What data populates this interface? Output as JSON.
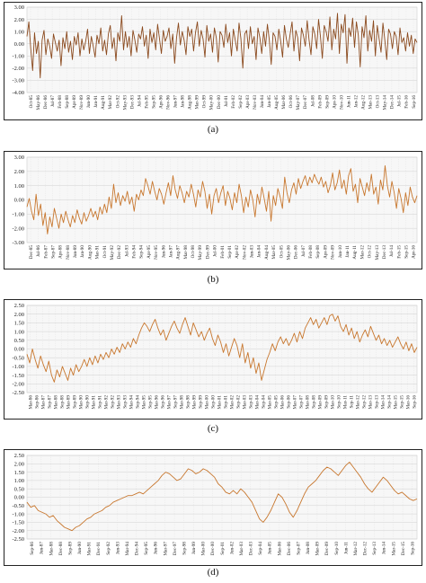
{
  "panels": [
    {
      "caption": "(a)",
      "ticks_y": [
        "-4.00",
        "-3.00",
        "-2.00",
        "-1.00",
        "0.00",
        "1.00",
        "2.00",
        "3.00"
      ],
      "ticks_x": [
        "Oct-85",
        "May-86",
        "Dec-86",
        "Jul-87",
        "Feb-88",
        "Sep-88",
        "Apr-89",
        "Nov-89",
        "Jun-90",
        "Jan-91",
        "Aug-91",
        "Mar-92",
        "Oct-92",
        "May-93",
        "Dec-93",
        "Jul-94",
        "Feb-95",
        "Sep-95",
        "Apr-96",
        "Nov-96",
        "Jun-97",
        "Jan-98",
        "Aug-98",
        "Mar-99",
        "Oct-99",
        "May-00",
        "Dec-00",
        "Jul-01",
        "Feb-02",
        "Sep-02",
        "Apr-03",
        "Nov-03",
        "Jun-04",
        "Jan-05",
        "Aug-05",
        "Mar-06",
        "Oct-06",
        "May-07",
        "Dec-07",
        "Jul-08",
        "Feb-09",
        "Sep-09",
        "Apr-10",
        "Nov-10",
        "Jun-11",
        "Jan-12",
        "Aug-12",
        "Mar-13",
        "Oct-13",
        "May-14",
        "Dec-14",
        "Jul-15",
        "Feb-16",
        "Sep-16"
      ]
    },
    {
      "caption": "(b)",
      "ticks_y": [
        "-3.00",
        "-2.00",
        "-1.00",
        "0.00",
        "1.00",
        "2.00",
        "3.00"
      ],
      "ticks_x": [
        "Dec-85",
        "Jul-86",
        "Feb-87",
        "Sep-87",
        "Apr-88",
        "Nov-88",
        "Jun-89",
        "Jan-90",
        "Aug-90",
        "Mar-91",
        "Oct-91",
        "May-92",
        "Dec-92",
        "Jul-93",
        "Feb-94",
        "Sep-94",
        "Apr-95",
        "Nov-95",
        "Jun-96",
        "Jan-97",
        "Aug-97",
        "Mar-98",
        "Oct-98",
        "May-99",
        "Dec-99",
        "Jul-00",
        "Feb-01",
        "Sep-01",
        "Apr-02",
        "Nov-02",
        "Jun-03",
        "Jan-04",
        "Aug-04",
        "Mar-05",
        "Oct-05",
        "May-06",
        "Dec-06",
        "Jul-07",
        "Feb-08",
        "Sep-08",
        "Apr-09",
        "Nov-09",
        "Jun-10",
        "Jan-11",
        "Aug-11",
        "Mar-12",
        "Oct-12",
        "May-13",
        "Dec-13",
        "Jul-14",
        "Feb-15",
        "Sep-15",
        "Apr-16"
      ]
    },
    {
      "caption": "(c)",
      "ticks_y": [
        "-2.50",
        "-2.00",
        "-1.50",
        "-1.00",
        "-0.50",
        "0.00",
        "0.50",
        "1.00",
        "1.50",
        "2.00",
        "2.50"
      ],
      "ticks_x": [
        "Mar-86",
        "Sep-86",
        "Mar-87",
        "Sep-87",
        "Mar-88",
        "Sep-88",
        "Mar-89",
        "Sep-89",
        "Mar-90",
        "Sep-90",
        "Mar-91",
        "Sep-91",
        "Mar-92",
        "Sep-92",
        "Mar-93",
        "Sep-93",
        "Mar-94",
        "Sep-94",
        "Mar-95",
        "Sep-95",
        "Mar-96",
        "Sep-96",
        "Mar-97",
        "Sep-97",
        "Mar-98",
        "Sep-98",
        "Mar-99",
        "Sep-99",
        "Mar-00",
        "Sep-00",
        "Mar-01",
        "Sep-01",
        "Mar-02",
        "Sep-02",
        "Mar-03",
        "Sep-03",
        "Mar-04",
        "Sep-04",
        "Mar-05",
        "Sep-05",
        "Mar-06",
        "Sep-06",
        "Mar-07",
        "Sep-07",
        "Mar-08",
        "Sep-08",
        "Mar-09",
        "Sep-09",
        "Mar-10",
        "Sep-10",
        "Mar-11",
        "Sep-11",
        "Mar-12",
        "Sep-12",
        "Mar-13",
        "Sep-13",
        "Mar-14",
        "Sep-14",
        "Mar-15",
        "Sep-15",
        "Mar-16",
        "Sep-16"
      ]
    },
    {
      "caption": "(d)",
      "ticks_y": [
        "-2.50",
        "-2.00",
        "-1.50",
        "-1.00",
        "-0.50",
        "0.00",
        "0.50",
        "1.00",
        "1.50",
        "2.00",
        "2.50"
      ],
      "ticks_x": [
        "Sep-86",
        "Jun-87",
        "Mar-88",
        "Dec-88",
        "Sep-89",
        "Jun-90",
        "Mar-91",
        "Dec-91",
        "Sep-92",
        "Jun-93",
        "Mar-94",
        "Dec-94",
        "Sep-95",
        "Jun-96",
        "Mar-97",
        "Dec-97",
        "Sep-98",
        "Jun-99",
        "Mar-00",
        "Dec-00",
        "Sep-01",
        "Jun-02",
        "Mar-03",
        "Dec-03",
        "Sep-04",
        "Jun-05",
        "Mar-06",
        "Dec-06",
        "Sep-07",
        "Jun-08",
        "Mar-09",
        "Dec-09",
        "Sep-10",
        "Jun-11",
        "Mar-12",
        "Dec-12",
        "Sep-13",
        "Jun-14",
        "Mar-15",
        "Dec-15",
        "Sep-16"
      ]
    }
  ],
  "chart_data": [
    {
      "type": "line",
      "title": "",
      "xlabel": "",
      "ylabel": "",
      "ylim": [
        -4,
        3
      ],
      "grid": true,
      "color": "#8B4A1E",
      "x_start": "Oct-85",
      "x_end": "Dec-16",
      "values": [
        0.6,
        1.8,
        -0.4,
        -2.2,
        0.9,
        -0.8,
        0.2,
        -2.8,
        0.3,
        1.1,
        -0.9,
        0.4,
        -0.2,
        -1.2,
        0.8,
        0.1,
        -0.6,
        0.3,
        -1.8,
        0.5,
        -0.4,
        1.0,
        -0.7,
        0.2,
        -1.3,
        0.6,
        -0.1,
        0.9,
        -1.0,
        0.4,
        -0.5,
        0.2,
        1.2,
        -0.8,
        0.6,
        -0.2,
        -1.1,
        0.7,
        0.0,
        1.3,
        -0.6,
        0.3,
        -0.9,
        0.8,
        1.5,
        -0.4,
        0.5,
        -1.4,
        0.9,
        0.2,
        2.3,
        -0.5,
        1.0,
        -0.3,
        0.6,
        -1.0,
        1.1,
        0.3,
        -0.7,
        0.8,
        0.4,
        1.4,
        -0.2,
        0.7,
        -1.2,
        1.2,
        0.1,
        0.9,
        -0.5,
        1.6,
        0.4,
        -0.8,
        1.1,
        0.2,
        0.6,
        1.3,
        -0.4,
        0.8,
        -1.6,
        0.5,
        1.7,
        -0.1,
        1.0,
        0.3,
        -0.9,
        1.4,
        0.6,
        1.2,
        -0.6,
        0.9,
        1.8,
        -0.2,
        1.1,
        0.4,
        -1.1,
        1.5,
        0.2,
        0.8,
        -0.7,
        1.3,
        0.5,
        -1.5,
        1.0,
        0.7,
        -0.3,
        1.6,
        0.1,
        0.9,
        -1.0,
        1.2,
        0.3,
        -0.6,
        1.7,
        0.4,
        -2.0,
        0.8,
        1.1,
        -0.4,
        1.4,
        0.0,
        0.6,
        -1.3,
        1.3,
        0.5,
        -0.8,
        1.0,
        -0.2,
        1.6,
        0.3,
        -1.7,
        0.9,
        0.6,
        -0.5,
        1.2,
        0.2,
        -1.1,
        1.5,
        0.4,
        -0.3,
        0.8,
        1.8,
        -0.6,
        1.1,
        0.5,
        -1.4,
        1.3,
        0.7,
        -0.2,
        1.9,
        0.3,
        -0.9,
        1.4,
        0.8,
        -0.4,
        2.0,
        0.6,
        -1.2,
        1.5,
        1.0,
        0.2,
        2.2,
        -0.5,
        1.2,
        0.4,
        2.5,
        -0.8,
        1.6,
        0.9,
        2.4,
        -1.6,
        1.3,
        0.6,
        2.1,
        -0.3,
        1.8,
        0.7,
        -1.9,
        1.4,
        0.5,
        2.3,
        -0.6,
        1.1,
        0.2,
        1.9,
        -1.0,
        1.5,
        0.4,
        -0.7,
        1.7,
        0.3,
        -1.3,
        1.2,
        0.8,
        -0.4,
        1.0,
        0.6,
        -0.9,
        1.3,
        0.1,
        0.5,
        -0.6,
        0.9,
        -0.2,
        0.7,
        -0.8,
        0.4,
        0.1
      ]
    },
    {
      "type": "line",
      "title": "",
      "xlabel": "",
      "ylabel": "",
      "ylim": [
        -3,
        3
      ],
      "grid": true,
      "color": "#C8772E",
      "x_start": "Dec-85",
      "x_end": "Dec-16",
      "values": [
        -0.5,
        0.1,
        -0.8,
        -1.4,
        0.4,
        -1.1,
        -0.3,
        -1.8,
        -0.9,
        -2.4,
        -1.2,
        -1.9,
        -0.6,
        -1.3,
        -2.0,
        -1.0,
        -1.6,
        -0.8,
        -1.4,
        -1.9,
        -1.1,
        -1.6,
        -0.7,
        -1.3,
        -1.7,
        -0.9,
        -1.5,
        -1.1,
        -0.6,
        -1.2,
        -0.8,
        -1.4,
        -0.5,
        -1.0,
        -0.3,
        -0.9,
        0.2,
        -0.6,
        1.1,
        -0.2,
        0.5,
        -0.4,
        0.3,
        -0.1,
        0.6,
        -0.3,
        0.2,
        -0.8,
        0.4,
        0.0,
        0.7,
        0.3,
        1.5,
        1.0,
        0.4,
        1.3,
        0.6,
        0.0,
        0.8,
        0.4,
        -0.3,
        0.5,
        1.2,
        0.3,
        1.7,
        0.7,
        0.1,
        1.0,
        0.5,
        -0.2,
        0.6,
        0.2,
        1.1,
        0.4,
        -0.5,
        0.7,
        0.2,
        1.3,
        0.6,
        -0.6,
        0.4,
        -1.0,
        0.3,
        0.8,
        -0.2,
        0.5,
        1.0,
        -0.4,
        0.6,
        0.1,
        -0.7,
        0.5,
        -0.2,
        1.1,
        0.3,
        -0.9,
        0.2,
        -0.5,
        0.7,
        0.0,
        -1.2,
        0.4,
        -0.3,
        0.9,
        0.1,
        -0.8,
        0.6,
        -1.5,
        0.3,
        -0.4,
        0.8,
        0.2,
        -0.6,
        1.6,
        0.5,
        -0.2,
        0.7,
        1.2,
        0.4,
        1.5,
        0.8,
        1.3,
        1.7,
        1.0,
        1.6,
        1.2,
        1.8,
        1.4,
        1.1,
        1.6,
        0.9,
        1.3,
        0.5,
        1.0,
        1.9,
        0.7,
        1.2,
        2.1,
        0.8,
        1.4,
        0.4,
        1.7,
        2.2,
        0.6,
        1.1,
        -0.2,
        1.5,
        0.9,
        0.3,
        1.2,
        0.6,
        1.8,
        0.4,
        0.9,
        -0.3,
        1.4,
        0.7,
        2.4,
        1.0,
        0.2,
        1.3,
        0.5,
        -0.6,
        0.8,
        0.1,
        -0.9,
        0.5,
        -0.4,
        0.9,
        0.2,
        -0.2,
        0.3
      ]
    },
    {
      "type": "line",
      "title": "",
      "xlabel": "",
      "ylabel": "",
      "ylim": [
        -2.5,
        2.5
      ],
      "grid": true,
      "color": "#C8772E",
      "x_start": "Mar-86",
      "x_end": "Dec-16",
      "values": [
        -0.3,
        -0.8,
        0.0,
        -0.6,
        -1.1,
        -0.4,
        -0.9,
        -1.3,
        -0.7,
        -1.5,
        -1.9,
        -1.2,
        -1.6,
        -1.0,
        -1.4,
        -1.8,
        -1.1,
        -1.5,
        -0.9,
        -1.3,
        -1.0,
        -0.6,
        -1.0,
        -0.5,
        -0.9,
        -0.4,
        -0.8,
        -0.3,
        -0.6,
        -0.2,
        -0.5,
        0.0,
        -0.3,
        0.1,
        -0.2,
        0.3,
        0.0,
        0.4,
        0.1,
        0.6,
        0.3,
        0.8,
        1.2,
        1.5,
        1.3,
        1.0,
        1.4,
        1.7,
        1.2,
        0.8,
        1.1,
        0.5,
        0.9,
        1.3,
        1.6,
        1.2,
        0.9,
        1.4,
        1.8,
        1.3,
        0.8,
        1.5,
        1.1,
        0.7,
        1.0,
        0.5,
        0.9,
        1.2,
        0.6,
        0.2,
        0.8,
        0.4,
        -0.2,
        0.3,
        -0.4,
        0.1,
        0.6,
        0.2,
        -0.5,
        0.3,
        -0.8,
        -0.2,
        -1.1,
        -0.5,
        -1.4,
        -0.8,
        -1.8,
        -1.2,
        -0.6,
        -0.2,
        0.3,
        -0.1,
        0.4,
        0.7,
        0.3,
        0.6,
        0.2,
        0.5,
        0.9,
        0.4,
        1.0,
        0.6,
        1.2,
        1.5,
        1.8,
        1.4,
        1.7,
        1.2,
        1.5,
        1.8,
        1.4,
        1.9,
        2.0,
        1.6,
        1.9,
        1.3,
        1.0,
        1.4,
        0.8,
        1.2,
        0.6,
        1.0,
        0.4,
        0.8,
        1.1,
        0.7,
        1.3,
        0.9,
        0.5,
        0.8,
        0.3,
        0.6,
        0.2,
        0.5,
        0.1,
        0.4,
        0.7,
        0.3,
        0.0,
        0.4,
        -0.1,
        0.3,
        -0.2,
        0.1
      ]
    },
    {
      "type": "line",
      "title": "",
      "xlabel": "",
      "ylabel": "",
      "ylim": [
        -2.5,
        2.5
      ],
      "grid": true,
      "color": "#C8772E",
      "x_start": "Sep-86",
      "x_end": "Dec-16",
      "values": [
        -0.3,
        -0.6,
        -0.5,
        -0.8,
        -0.9,
        -1.0,
        -1.2,
        -1.1,
        -1.4,
        -1.6,
        -1.8,
        -1.9,
        -2.0,
        -1.8,
        -1.7,
        -1.5,
        -1.3,
        -1.2,
        -1.0,
        -0.9,
        -0.8,
        -0.6,
        -0.5,
        -0.3,
        -0.2,
        -0.1,
        0.0,
        0.1,
        0.1,
        0.2,
        0.3,
        0.2,
        0.4,
        0.6,
        0.8,
        1.0,
        1.3,
        1.5,
        1.4,
        1.2,
        1.0,
        1.1,
        1.4,
        1.7,
        1.6,
        1.4,
        1.5,
        1.7,
        1.6,
        1.4,
        1.2,
        0.8,
        0.6,
        0.3,
        0.2,
        0.4,
        0.2,
        0.5,
        0.3,
        0.0,
        -0.3,
        -0.8,
        -1.3,
        -1.5,
        -1.2,
        -0.8,
        -0.3,
        0.2,
        0.0,
        -0.4,
        -0.9,
        -1.2,
        -0.8,
        -0.3,
        0.2,
        0.6,
        0.8,
        1.0,
        1.3,
        1.6,
        1.8,
        1.7,
        1.5,
        1.3,
        1.6,
        1.9,
        2.1,
        1.8,
        1.5,
        1.2,
        0.8,
        0.5,
        0.3,
        0.6,
        0.9,
        1.2,
        1.0,
        0.7,
        0.4,
        0.2,
        0.3,
        0.1,
        -0.1,
        -0.2,
        -0.1
      ]
    }
  ]
}
